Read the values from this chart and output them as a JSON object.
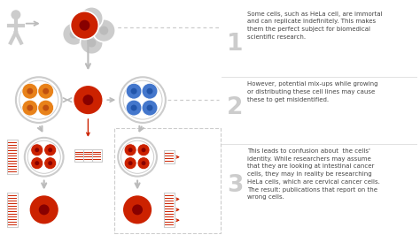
{
  "bg_color": "#ffffff",
  "section1_text": "Some cells, such as HeLa cell, are immortal\nand can replicate indefinitely. This makes\nthem the perfect subject for biomedical\nscientific research.",
  "section2_text": "However, potential mix-ups while growing\nor distributing these cell lines may cause\nthese to get misidentified.",
  "section3_text": "This leads to confusion about  the cells'\nidentity. While researchers may assume\nthat they are looking at intestinal cancer\ncells, they may in reality be researching\nHeLa cells, which are cervical cancer cells.\nThe result: publications that report on the\nwrong cells.",
  "red": "#cc2200",
  "dark_red": "#880000",
  "gray": "#999999",
  "light_gray": "#cccccc",
  "med_gray": "#bbbbbb",
  "orange": "#e8821a",
  "blue": "#4477cc",
  "text_color": "#444444",
  "number_color": "#cccccc",
  "divider_color": "#dddddd"
}
